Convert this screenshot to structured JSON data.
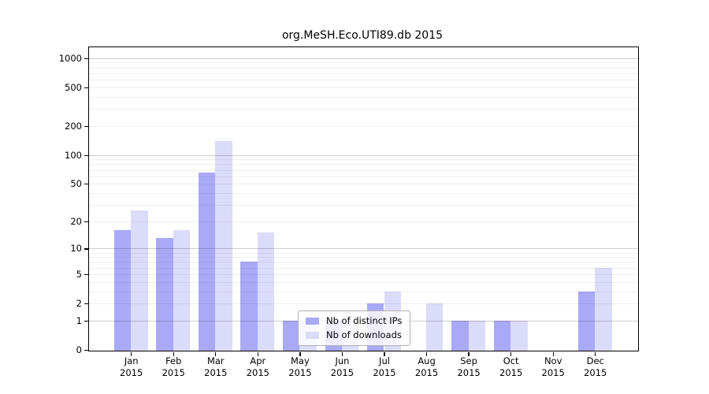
{
  "chart_data": {
    "type": "bar",
    "title": "org.MeSH.Eco.UTI89.db 2015",
    "categories": [
      "Jan",
      "Feb",
      "Mar",
      "Apr",
      "May",
      "Jun",
      "Jul",
      "Aug",
      "Sep",
      "Oct",
      "Nov",
      "Dec"
    ],
    "year_label": "2015",
    "series": [
      {
        "name": "Nb of distinct IPs",
        "color": "#a9a9f8",
        "values": [
          16,
          13,
          66,
          7,
          1,
          1,
          2,
          0,
          1,
          1,
          0,
          3
        ]
      },
      {
        "name": "Nb of downloads",
        "color": "#dbdbfa",
        "values": [
          26,
          16,
          139,
          15,
          1,
          1,
          3,
          2,
          1,
          1,
          0,
          6
        ]
      }
    ],
    "y_scale": "log1p",
    "yticks": [
      0,
      1,
      2,
      5,
      10,
      20,
      50,
      100,
      200,
      500,
      1000
    ],
    "ylim": [
      0,
      1200
    ],
    "xlabel": "",
    "ylabel": "",
    "grid": true,
    "legend_position": "bottom-center"
  }
}
